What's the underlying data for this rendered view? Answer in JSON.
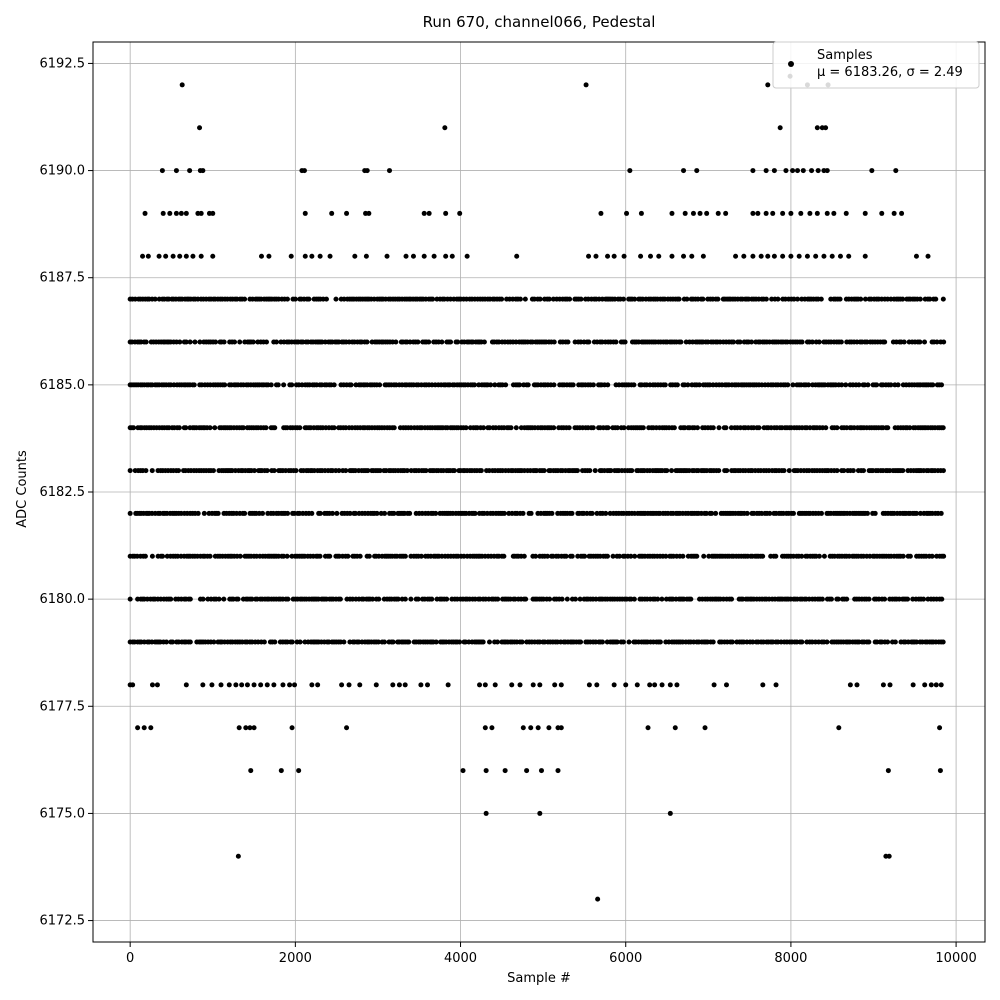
{
  "chart_data": {
    "type": "scatter",
    "title": "Run 670, channel066, Pedestal",
    "xlabel": "Sample #",
    "ylabel": "ADC Counts",
    "xlim": [
      -450,
      10350
    ],
    "ylim": [
      6172.0,
      6193.0
    ],
    "xticks": [
      0,
      2000,
      4000,
      6000,
      8000,
      10000
    ],
    "yticks": [
      6172.5,
      6175.0,
      6177.5,
      6180.0,
      6182.5,
      6185.0,
      6187.5,
      6190.0,
      6192.5
    ],
    "grid": true,
    "legend": {
      "placement": "top-right",
      "label": "Samples",
      "stats": "μ = 6183.26, σ = 2.49"
    },
    "series": [
      {
        "name": "Samples",
        "color": "#000000",
        "level_ranges": [
          {
            "y": 6187,
            "range": [
              0,
              9850
            ]
          },
          {
            "y": 6186,
            "range": [
              0,
              9850
            ]
          },
          {
            "y": 6185,
            "range": [
              0,
              9850
            ]
          },
          {
            "y": 6184,
            "range": [
              0,
              9850
            ]
          },
          {
            "y": 6183,
            "range": [
              0,
              9850
            ]
          },
          {
            "y": 6182,
            "range": [
              0,
              9850
            ]
          },
          {
            "y": 6181,
            "range": [
              0,
              9850
            ]
          },
          {
            "y": 6180,
            "range": [
              0,
              9850
            ]
          },
          {
            "y": 6179,
            "range": [
              0,
              9850
            ]
          }
        ],
        "points": [
          {
            "x": 630,
            "y": 6192
          },
          {
            "x": 5520,
            "y": 6192
          },
          {
            "x": 7720,
            "y": 6192
          },
          {
            "x": 8200,
            "y": 6192
          },
          {
            "x": 8450,
            "y": 6192
          },
          {
            "x": 7990,
            "y": 6192.2
          },
          {
            "x": 840,
            "y": 6191
          },
          {
            "x": 3810,
            "y": 6191
          },
          {
            "x": 7870,
            "y": 6191
          },
          {
            "x": 8320,
            "y": 6191
          },
          {
            "x": 8380,
            "y": 6191
          },
          {
            "x": 8420,
            "y": 6191
          },
          {
            "x": 390,
            "y": 6190
          },
          {
            "x": 560,
            "y": 6190
          },
          {
            "x": 720,
            "y": 6190
          },
          {
            "x": 850,
            "y": 6190
          },
          {
            "x": 880,
            "y": 6190
          },
          {
            "x": 2080,
            "y": 6190
          },
          {
            "x": 2110,
            "y": 6190
          },
          {
            "x": 2840,
            "y": 6190
          },
          {
            "x": 2870,
            "y": 6190
          },
          {
            "x": 3140,
            "y": 6190
          },
          {
            "x": 6050,
            "y": 6190
          },
          {
            "x": 6700,
            "y": 6190
          },
          {
            "x": 6860,
            "y": 6190
          },
          {
            "x": 7540,
            "y": 6190
          },
          {
            "x": 7700,
            "y": 6190
          },
          {
            "x": 7800,
            "y": 6190
          },
          {
            "x": 7940,
            "y": 6190
          },
          {
            "x": 8020,
            "y": 6190
          },
          {
            "x": 8080,
            "y": 6190
          },
          {
            "x": 8150,
            "y": 6190
          },
          {
            "x": 8250,
            "y": 6190
          },
          {
            "x": 8330,
            "y": 6190
          },
          {
            "x": 8400,
            "y": 6190
          },
          {
            "x": 8440,
            "y": 6190
          },
          {
            "x": 8980,
            "y": 6190
          },
          {
            "x": 9270,
            "y": 6190
          },
          {
            "x": 180,
            "y": 6189
          },
          {
            "x": 400,
            "y": 6189
          },
          {
            "x": 480,
            "y": 6189
          },
          {
            "x": 560,
            "y": 6189
          },
          {
            "x": 620,
            "y": 6189
          },
          {
            "x": 680,
            "y": 6189
          },
          {
            "x": 820,
            "y": 6189
          },
          {
            "x": 860,
            "y": 6189
          },
          {
            "x": 960,
            "y": 6189
          },
          {
            "x": 1000,
            "y": 6189
          },
          {
            "x": 2120,
            "y": 6189
          },
          {
            "x": 2440,
            "y": 6189
          },
          {
            "x": 2620,
            "y": 6189
          },
          {
            "x": 2850,
            "y": 6189
          },
          {
            "x": 2890,
            "y": 6189
          },
          {
            "x": 3560,
            "y": 6189
          },
          {
            "x": 3620,
            "y": 6189
          },
          {
            "x": 3820,
            "y": 6189
          },
          {
            "x": 3990,
            "y": 6189
          },
          {
            "x": 5700,
            "y": 6189
          },
          {
            "x": 6010,
            "y": 6189
          },
          {
            "x": 6190,
            "y": 6189
          },
          {
            "x": 6560,
            "y": 6189
          },
          {
            "x": 6720,
            "y": 6189
          },
          {
            "x": 6820,
            "y": 6189
          },
          {
            "x": 6900,
            "y": 6189
          },
          {
            "x": 6980,
            "y": 6189
          },
          {
            "x": 7120,
            "y": 6189
          },
          {
            "x": 7210,
            "y": 6189
          },
          {
            "x": 7540,
            "y": 6189
          },
          {
            "x": 7600,
            "y": 6189
          },
          {
            "x": 7700,
            "y": 6189
          },
          {
            "x": 7780,
            "y": 6189
          },
          {
            "x": 7900,
            "y": 6189
          },
          {
            "x": 8000,
            "y": 6189
          },
          {
            "x": 8120,
            "y": 6189
          },
          {
            "x": 8230,
            "y": 6189
          },
          {
            "x": 8320,
            "y": 6189
          },
          {
            "x": 8440,
            "y": 6189
          },
          {
            "x": 8520,
            "y": 6189
          },
          {
            "x": 8670,
            "y": 6189
          },
          {
            "x": 8900,
            "y": 6189
          },
          {
            "x": 9100,
            "y": 6189
          },
          {
            "x": 9250,
            "y": 6189
          },
          {
            "x": 9340,
            "y": 6189
          },
          {
            "x": 150,
            "y": 6188
          },
          {
            "x": 220,
            "y": 6188
          },
          {
            "x": 350,
            "y": 6188
          },
          {
            "x": 430,
            "y": 6188
          },
          {
            "x": 520,
            "y": 6188
          },
          {
            "x": 600,
            "y": 6188
          },
          {
            "x": 680,
            "y": 6188
          },
          {
            "x": 760,
            "y": 6188
          },
          {
            "x": 860,
            "y": 6188
          },
          {
            "x": 1000,
            "y": 6188
          },
          {
            "x": 1590,
            "y": 6188
          },
          {
            "x": 1680,
            "y": 6188
          },
          {
            "x": 1950,
            "y": 6188
          },
          {
            "x": 2120,
            "y": 6188
          },
          {
            "x": 2200,
            "y": 6188
          },
          {
            "x": 2300,
            "y": 6188
          },
          {
            "x": 2420,
            "y": 6188
          },
          {
            "x": 2720,
            "y": 6188
          },
          {
            "x": 2860,
            "y": 6188
          },
          {
            "x": 3110,
            "y": 6188
          },
          {
            "x": 3340,
            "y": 6188
          },
          {
            "x": 3430,
            "y": 6188
          },
          {
            "x": 3560,
            "y": 6188
          },
          {
            "x": 3680,
            "y": 6188
          },
          {
            "x": 3820,
            "y": 6188
          },
          {
            "x": 3900,
            "y": 6188
          },
          {
            "x": 4080,
            "y": 6188
          },
          {
            "x": 4680,
            "y": 6188
          },
          {
            "x": 5550,
            "y": 6188
          },
          {
            "x": 5640,
            "y": 6188
          },
          {
            "x": 5780,
            "y": 6188
          },
          {
            "x": 5860,
            "y": 6188
          },
          {
            "x": 5980,
            "y": 6188
          },
          {
            "x": 6180,
            "y": 6188
          },
          {
            "x": 6300,
            "y": 6188
          },
          {
            "x": 6400,
            "y": 6188
          },
          {
            "x": 6560,
            "y": 6188
          },
          {
            "x": 6700,
            "y": 6188
          },
          {
            "x": 6800,
            "y": 6188
          },
          {
            "x": 6940,
            "y": 6188
          },
          {
            "x": 7330,
            "y": 6188
          },
          {
            "x": 7430,
            "y": 6188
          },
          {
            "x": 7540,
            "y": 6188
          },
          {
            "x": 7640,
            "y": 6188
          },
          {
            "x": 7720,
            "y": 6188
          },
          {
            "x": 7800,
            "y": 6188
          },
          {
            "x": 7900,
            "y": 6188
          },
          {
            "x": 8000,
            "y": 6188
          },
          {
            "x": 8100,
            "y": 6188
          },
          {
            "x": 8200,
            "y": 6188
          },
          {
            "x": 8300,
            "y": 6188
          },
          {
            "x": 8400,
            "y": 6188
          },
          {
            "x": 8500,
            "y": 6188
          },
          {
            "x": 8600,
            "y": 6188
          },
          {
            "x": 8700,
            "y": 6188
          },
          {
            "x": 8900,
            "y": 6188
          },
          {
            "x": 9520,
            "y": 6188
          },
          {
            "x": 9660,
            "y": 6188
          },
          {
            "x": 0,
            "y": 6178
          },
          {
            "x": 30,
            "y": 6178
          },
          {
            "x": 270,
            "y": 6178
          },
          {
            "x": 330,
            "y": 6178
          },
          {
            "x": 680,
            "y": 6178
          },
          {
            "x": 880,
            "y": 6178
          },
          {
            "x": 990,
            "y": 6178
          },
          {
            "x": 1100,
            "y": 6178
          },
          {
            "x": 1200,
            "y": 6178
          },
          {
            "x": 1280,
            "y": 6178
          },
          {
            "x": 1350,
            "y": 6178
          },
          {
            "x": 1420,
            "y": 6178
          },
          {
            "x": 1500,
            "y": 6178
          },
          {
            "x": 1580,
            "y": 6178
          },
          {
            "x": 1660,
            "y": 6178
          },
          {
            "x": 1740,
            "y": 6178
          },
          {
            "x": 1850,
            "y": 6178
          },
          {
            "x": 1930,
            "y": 6178
          },
          {
            "x": 1990,
            "y": 6178
          },
          {
            "x": 2200,
            "y": 6178
          },
          {
            "x": 2270,
            "y": 6178
          },
          {
            "x": 2560,
            "y": 6178
          },
          {
            "x": 2650,
            "y": 6178
          },
          {
            "x": 2780,
            "y": 6178
          },
          {
            "x": 2980,
            "y": 6178
          },
          {
            "x": 3180,
            "y": 6178
          },
          {
            "x": 3260,
            "y": 6178
          },
          {
            "x": 3330,
            "y": 6178
          },
          {
            "x": 3520,
            "y": 6178
          },
          {
            "x": 3600,
            "y": 6178
          },
          {
            "x": 3850,
            "y": 6178
          },
          {
            "x": 4230,
            "y": 6178
          },
          {
            "x": 4300,
            "y": 6178
          },
          {
            "x": 4420,
            "y": 6178
          },
          {
            "x": 4620,
            "y": 6178
          },
          {
            "x": 4720,
            "y": 6178
          },
          {
            "x": 4880,
            "y": 6178
          },
          {
            "x": 4960,
            "y": 6178
          },
          {
            "x": 5140,
            "y": 6178
          },
          {
            "x": 5220,
            "y": 6178
          },
          {
            "x": 5560,
            "y": 6178
          },
          {
            "x": 5650,
            "y": 6178
          },
          {
            "x": 5860,
            "y": 6178
          },
          {
            "x": 6000,
            "y": 6178
          },
          {
            "x": 6140,
            "y": 6178
          },
          {
            "x": 6290,
            "y": 6178
          },
          {
            "x": 6350,
            "y": 6178
          },
          {
            "x": 6440,
            "y": 6178
          },
          {
            "x": 6540,
            "y": 6178
          },
          {
            "x": 6620,
            "y": 6178
          },
          {
            "x": 7070,
            "y": 6178
          },
          {
            "x": 7220,
            "y": 6178
          },
          {
            "x": 7660,
            "y": 6178
          },
          {
            "x": 7820,
            "y": 6178
          },
          {
            "x": 8720,
            "y": 6178
          },
          {
            "x": 8800,
            "y": 6178
          },
          {
            "x": 9120,
            "y": 6178
          },
          {
            "x": 9200,
            "y": 6178
          },
          {
            "x": 9480,
            "y": 6178
          },
          {
            "x": 9620,
            "y": 6178
          },
          {
            "x": 9700,
            "y": 6178
          },
          {
            "x": 9760,
            "y": 6178
          },
          {
            "x": 9820,
            "y": 6178
          },
          {
            "x": 90,
            "y": 6177
          },
          {
            "x": 170,
            "y": 6177
          },
          {
            "x": 250,
            "y": 6177
          },
          {
            "x": 1320,
            "y": 6177
          },
          {
            "x": 1400,
            "y": 6177
          },
          {
            "x": 1450,
            "y": 6177
          },
          {
            "x": 1500,
            "y": 6177
          },
          {
            "x": 1960,
            "y": 6177
          },
          {
            "x": 2620,
            "y": 6177
          },
          {
            "x": 4300,
            "y": 6177
          },
          {
            "x": 4380,
            "y": 6177
          },
          {
            "x": 4760,
            "y": 6177
          },
          {
            "x": 4850,
            "y": 6177
          },
          {
            "x": 4940,
            "y": 6177
          },
          {
            "x": 5070,
            "y": 6177
          },
          {
            "x": 5180,
            "y": 6177
          },
          {
            "x": 5220,
            "y": 6177
          },
          {
            "x": 6270,
            "y": 6177
          },
          {
            "x": 6600,
            "y": 6177
          },
          {
            "x": 6960,
            "y": 6177
          },
          {
            "x": 8580,
            "y": 6177
          },
          {
            "x": 9800,
            "y": 6177
          },
          {
            "x": 1460,
            "y": 6176
          },
          {
            "x": 1830,
            "y": 6176
          },
          {
            "x": 2040,
            "y": 6176
          },
          {
            "x": 4030,
            "y": 6176
          },
          {
            "x": 4310,
            "y": 6176
          },
          {
            "x": 4540,
            "y": 6176
          },
          {
            "x": 4800,
            "y": 6176
          },
          {
            "x": 4980,
            "y": 6176
          },
          {
            "x": 5180,
            "y": 6176
          },
          {
            "x": 9180,
            "y": 6176
          },
          {
            "x": 9810,
            "y": 6176
          },
          {
            "x": 4310,
            "y": 6175
          },
          {
            "x": 4960,
            "y": 6175
          },
          {
            "x": 6540,
            "y": 6175
          },
          {
            "x": 1310,
            "y": 6174
          },
          {
            "x": 9150,
            "y": 6174
          },
          {
            "x": 9190,
            "y": 6174
          },
          {
            "x": 5660,
            "y": 6173
          }
        ]
      }
    ]
  }
}
